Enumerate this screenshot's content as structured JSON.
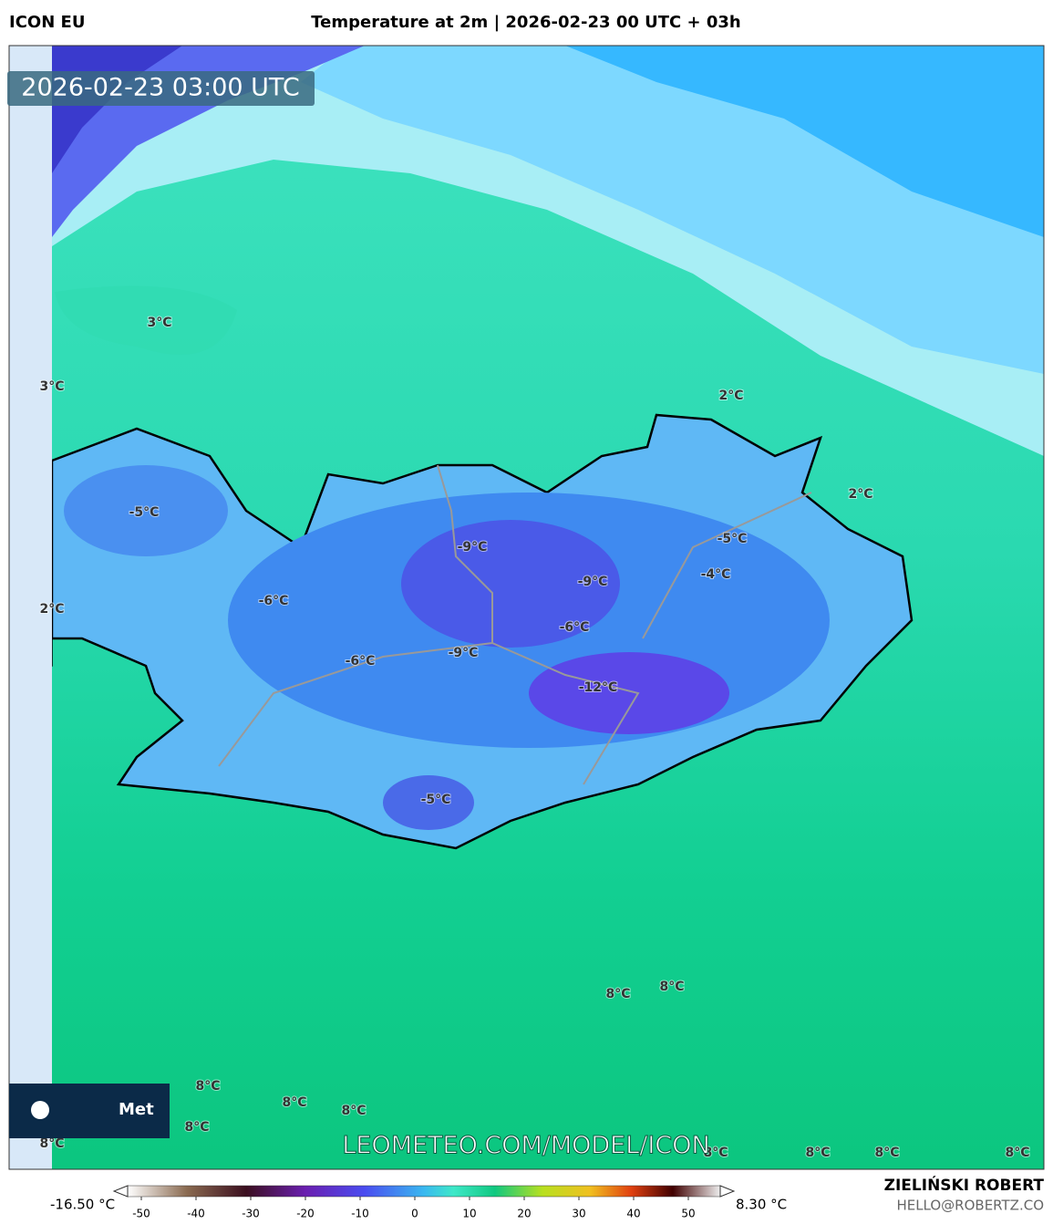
{
  "header": {
    "model": "ICON EU",
    "title": "Temperature at 2m | 2026-02-23 00 UTC + 03h"
  },
  "timestamp": "2026-02-23 03:00 UTC",
  "map_labels": [
    "3°C",
    "3°C",
    "2°C",
    "-5°C",
    "-6°C",
    "-9°C",
    "-9°C",
    "-6°C",
    "-5°C",
    "-4°C",
    "2°C",
    "2°C",
    "-6°C",
    "-9°C",
    "-12°C",
    "-5°C",
    "8°C",
    "8°C",
    "8°C",
    "8°C",
    "8°C",
    "8°C",
    "8°C",
    "8°C",
    "8°C",
    "8°C",
    "8°C"
  ],
  "logo": "Met",
  "watermark": "LEOMETEO.COM/MODEL/ICON",
  "colorbar": {
    "min_label": "-16.50 °C",
    "max_label": "8.30 °C",
    "ticks": [
      -50,
      -40,
      -30,
      -20,
      -10,
      0,
      10,
      20,
      30,
      40,
      50
    ]
  },
  "footer": {
    "author": "ZIELIŃSKI ROBERT",
    "contact": "HELLO@ROBERTZ.CO"
  }
}
